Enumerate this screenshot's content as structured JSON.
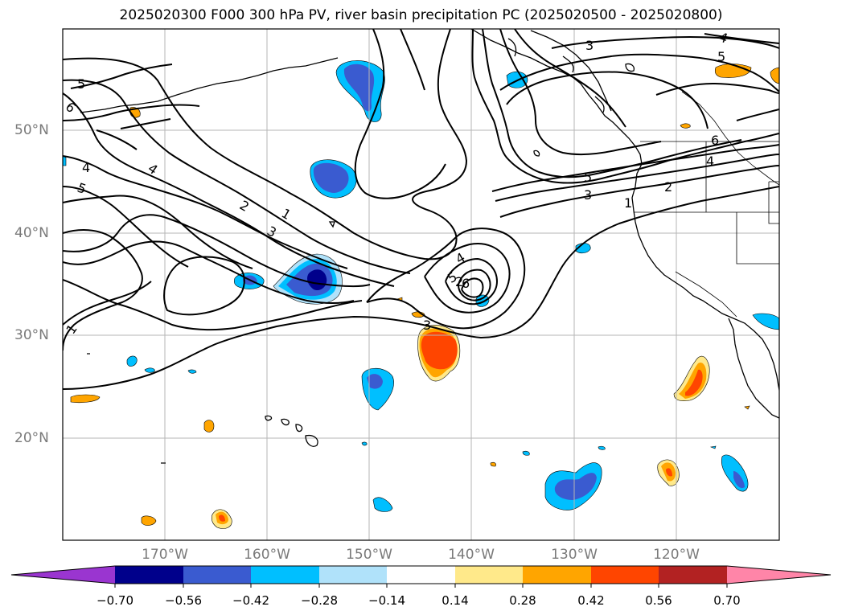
{
  "title": "2025020300 F000 300 hPa PV, river basin precipitation PC (2025020500 - 2025020800)",
  "lat_labels": [
    "50°N",
    "40°N",
    "30°N",
    "20°N"
  ],
  "lon_labels": [
    "170°W",
    "160°W",
    "150°W",
    "140°W",
    "130°W",
    "120°W"
  ],
  "colorbar": {
    "labels": [
      "−0.70",
      "−0.56",
      "−0.42",
      "−0.28",
      "−0.14",
      "0.14",
      "0.28",
      "0.42",
      "0.56",
      "0.70"
    ],
    "colors": [
      "#9a35d0",
      "#00008b",
      "#3a5bd0",
      "#00bfff",
      "#b0e2fa",
      "#ffffff",
      "#ffe98a",
      "#ffa500",
      "#ff4500",
      "#b22222",
      "#ff85a8"
    ]
  },
  "contour_labels": [
    "1",
    "2",
    "3",
    "4",
    "5",
    "6",
    "4",
    "5",
    "1",
    "2",
    "3",
    "4",
    "5",
    "6",
    "1",
    "2",
    "3",
    "4",
    "5",
    "6",
    "4",
    "5",
    "3"
  ],
  "colors": {
    "gridline": "#b5b5b5",
    "contour": "#000000",
    "coast": "#000000"
  }
}
